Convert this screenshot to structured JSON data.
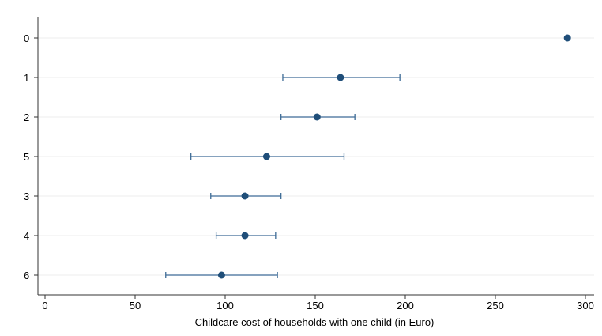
{
  "chart_data": {
    "type": "dot-whisker",
    "orientation": "horizontal",
    "xlabel": "Childcare cost of households with one child (in Euro)",
    "ylabel": "",
    "xlim": [
      -2,
      303
    ],
    "xticks": [
      0,
      50,
      100,
      150,
      200,
      250,
      300
    ],
    "grid": "horizontal",
    "categories": [
      "0",
      "1",
      "2",
      "5",
      "3",
      "4",
      "6"
    ],
    "series": [
      {
        "points": [
          {
            "category": "0",
            "estimate": 290,
            "ci_low": null,
            "ci_high": null
          },
          {
            "category": "1",
            "estimate": 164,
            "ci_low": 132,
            "ci_high": 197
          },
          {
            "category": "2",
            "estimate": 151,
            "ci_low": 131,
            "ci_high": 172
          },
          {
            "category": "5",
            "estimate": 123,
            "ci_low": 81,
            "ci_high": 166
          },
          {
            "category": "3",
            "estimate": 111,
            "ci_low": 92,
            "ci_high": 131
          },
          {
            "category": "4",
            "estimate": 111,
            "ci_low": 95,
            "ci_high": 128
          },
          {
            "category": "6",
            "estimate": 98,
            "ci_low": 67,
            "ci_high": 129
          }
        ]
      }
    ],
    "colors": {
      "marker": "#1f4e79",
      "whisker": "#3d6b96",
      "grid": "#ececec",
      "axis": "#333333"
    }
  }
}
